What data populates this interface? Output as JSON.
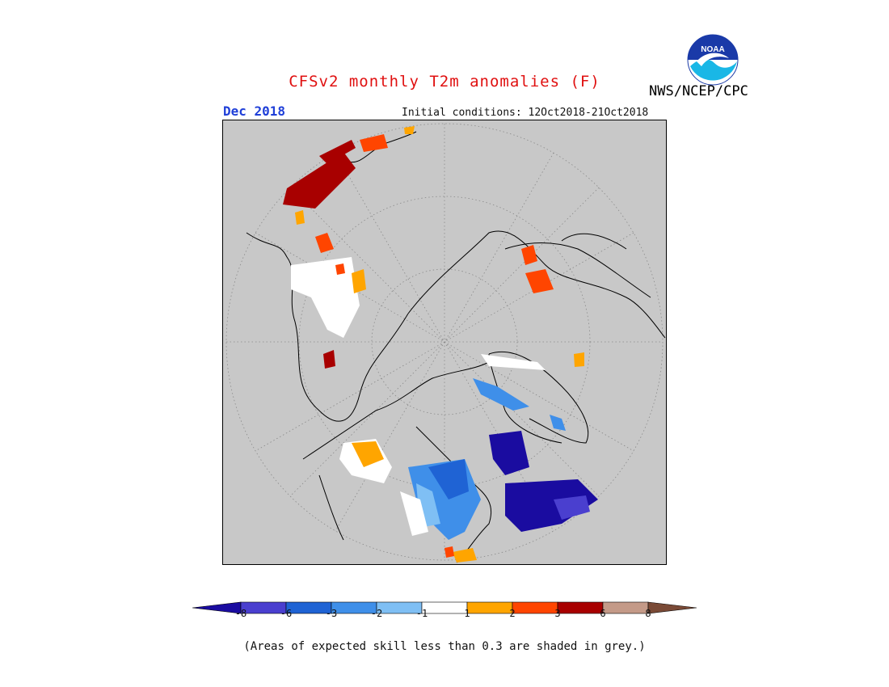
{
  "title": "CFSv2 monthly T2m anomalies (F)",
  "month": "Dec 2018",
  "initial_conditions": "Initial conditions: 12Oct2018-21Oct2018",
  "org": "NWS/NCEP/CPC",
  "logo_text": "NOAA",
  "note": "(Areas of expected skill less than 0.3 are shaded in grey.)",
  "colorbar": {
    "colors": [
      "#1a0ca0",
      "#4a3fcf",
      "#1f63d4",
      "#3f8fe9",
      "#7fbff4",
      "#ffffff",
      "#ffa500",
      "#ff4500",
      "#a80000",
      "#c49a88",
      "#7a4a36"
    ],
    "tick_labels": [
      "-8",
      "-6",
      "-3",
      "-2",
      "-1",
      "1",
      "2",
      "3",
      "6",
      "8"
    ]
  },
  "map": {
    "background": "#c8c8c8",
    "legend_unit": "F"
  }
}
